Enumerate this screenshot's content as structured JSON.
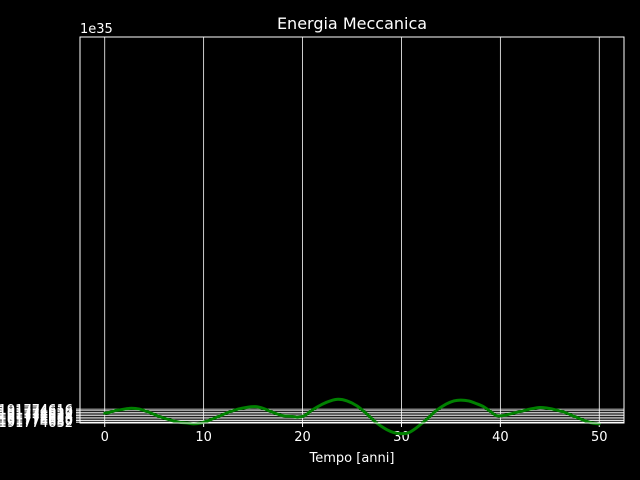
{
  "chart_data": {
    "type": "line",
    "title": "Energia Meccanica",
    "xlabel": "Tempo [anni]",
    "ylabel": "",
    "offset_label": "1e35",
    "xlim": [
      -2.5,
      52.5
    ],
    "ylim": [
      -2.1917746633,
      -2.1917746161
    ],
    "grid": true,
    "colors": {
      "background": "#000000",
      "text": "#ffffff",
      "grid": "#ffffff",
      "line": "#008000"
    },
    "x_ticks": [
      {
        "value": 0,
        "label": "0"
      },
      {
        "value": 10,
        "label": "10"
      },
      {
        "value": 20,
        "label": "20"
      },
      {
        "value": 30,
        "label": "30"
      },
      {
        "value": 40,
        "label": "40"
      },
      {
        "value": 50,
        "label": "50"
      }
    ],
    "y_ticks": [
      {
        "value": -2.1917746616,
        "label": "−2.191774616"
      },
      {
        "value": -2.1917746618,
        "label": "−2.191774618"
      },
      {
        "value": -2.191774662,
        "label": "−2.191774620"
      },
      {
        "value": -2.1917746622,
        "label": "−2.191774622"
      },
      {
        "value": -2.1917746624,
        "label": "−2.191774624"
      },
      {
        "value": -2.1917746626,
        "label": "−2.191774626"
      },
      {
        "value": -2.1917746628,
        "label": "−2.191774628"
      },
      {
        "value": -2.191774663,
        "label": "−2.191774630"
      },
      {
        "value": -2.1917746632,
        "label": "−2.191774632"
      }
    ],
    "series": [
      {
        "x": [
          0,
          0.5,
          1,
          1.5,
          2,
          2.7,
          3.5,
          4.5,
          5.5,
          6.5,
          7.5,
          8.3,
          9,
          9.7,
          10.5,
          11.5,
          12.5,
          13.5,
          14.3,
          15.2,
          16,
          17,
          18,
          19,
          19.5,
          20.2,
          21,
          22,
          22.8,
          23.6,
          24.5,
          25.5,
          26.5,
          27.5,
          28.5,
          29.3,
          30,
          30.7,
          31.5,
          32.5,
          33.5,
          34.5,
          35.3,
          36,
          36.8,
          37.5,
          38.3,
          39,
          39.6,
          40.2,
          41,
          42,
          43,
          44,
          44.8,
          45.6,
          46.5,
          47.5,
          48.5,
          49.3,
          50
        ],
        "y": [
          -2.1917746621,
          -2.191774662,
          -2.1917746618,
          -2.1917746617,
          -2.1917746616,
          -2.1917746615,
          -2.1917746616,
          -2.191774662,
          -2.1917746625,
          -2.1917746629,
          -2.1917746632,
          -2.1917746633,
          -2.1917746634,
          -2.1917746633,
          -2.191774663,
          -2.1917746625,
          -2.191774662,
          -2.1917746616,
          -2.1917746614,
          -2.1917746613,
          -2.1917746615,
          -2.191774662,
          -2.1917746624,
          -2.1917746625,
          -2.1917746626,
          -2.1917746624,
          -2.1917746617,
          -2.191774661,
          -2.1917746606,
          -2.1917746604,
          -2.1917746606,
          -2.1917746612,
          -2.1917746622,
          -2.1917746633,
          -2.1917746641,
          -2.1917746645,
          -2.1917746646,
          -2.1917746645,
          -2.1917746639,
          -2.1917746629,
          -2.1917746618,
          -2.191774661,
          -2.1917746606,
          -2.1917746605,
          -2.1917746606,
          -2.1917746609,
          -2.1917746613,
          -2.1917746619,
          -2.1917746624,
          -2.1917746624,
          -2.1917746622,
          -2.1917746619,
          -2.1917746616,
          -2.1917746614,
          -2.1917746615,
          -2.1917746617,
          -2.191774662,
          -2.1917746625,
          -2.191774663,
          -2.1917746633,
          -2.1917746634
        ]
      }
    ]
  }
}
